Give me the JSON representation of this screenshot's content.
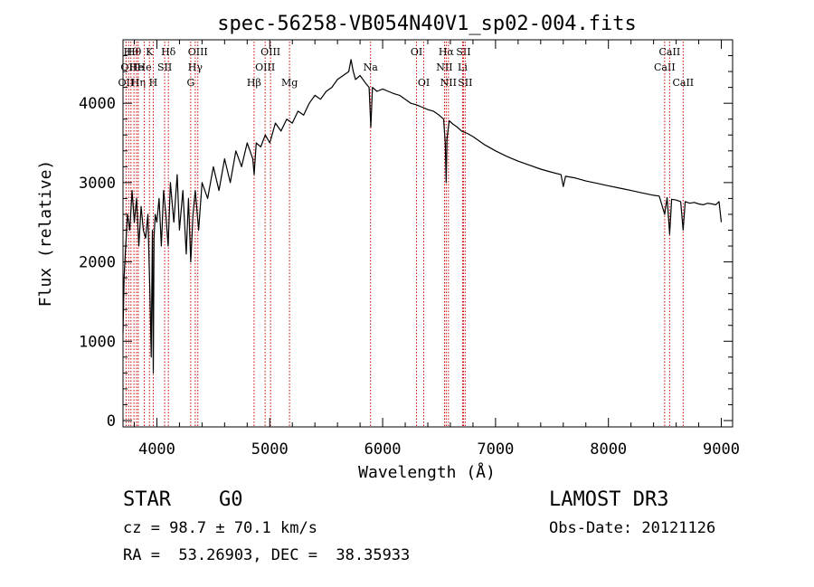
{
  "chart_data": {
    "type": "line",
    "title": "spec-56258-VB054N40V1_sp02-004.fits",
    "xlabel": "Wavelength (Å)",
    "ylabel": "Flux (relative)",
    "xlim": [
      3700,
      9100
    ],
    "ylim": [
      -80,
      4800
    ],
    "x_ticks": [
      4000,
      5000,
      6000,
      7000,
      8000,
      9000
    ],
    "x_tick_labels": [
      "4000",
      "5000",
      "6000",
      "7000",
      "8000",
      "9000"
    ],
    "y_ticks": [
      0,
      1000,
      2000,
      3000,
      4000
    ],
    "y_tick_labels": [
      "0",
      "1000",
      "2000",
      "3000",
      "4000"
    ],
    "grid": false,
    "series": [
      {
        "name": "flux",
        "color": "#000000",
        "x": [
          3700,
          3710,
          3720,
          3740,
          3760,
          3780,
          3800,
          3820,
          3840,
          3860,
          3880,
          3900,
          3920,
          3940,
          3950,
          3960,
          3968,
          3975,
          3985,
          4000,
          4020,
          4040,
          4060,
          4080,
          4100,
          4120,
          4150,
          4180,
          4200,
          4230,
          4260,
          4280,
          4300,
          4320,
          4340,
          4370,
          4400,
          4450,
          4500,
          4550,
          4600,
          4650,
          4700,
          4750,
          4800,
          4850,
          4862,
          4880,
          4920,
          4960,
          5000,
          5050,
          5100,
          5150,
          5200,
          5250,
          5300,
          5350,
          5400,
          5450,
          5500,
          5550,
          5600,
          5650,
          5700,
          5720,
          5740,
          5760,
          5800,
          5850,
          5880,
          5895,
          5910,
          5950,
          6000,
          6050,
          6100,
          6150,
          6200,
          6250,
          6300,
          6350,
          6400,
          6450,
          6500,
          6540,
          6555,
          6563,
          6570,
          6590,
          6620,
          6660,
          6700,
          6750,
          6800,
          6900,
          7000,
          7100,
          7200,
          7300,
          7400,
          7500,
          7580,
          7600,
          7620,
          7700,
          7800,
          7900,
          8000,
          8100,
          8200,
          8300,
          8400,
          8450,
          8498,
          8520,
          8542,
          8560,
          8600,
          8640,
          8662,
          8680,
          8720,
          8760,
          8800,
          8840,
          8880,
          8920,
          8950,
          8980,
          9000
        ],
        "values": [
          1100,
          1800,
          2100,
          2600,
          2400,
          2900,
          2500,
          2800,
          2200,
          2700,
          2400,
          2300,
          2600,
          1500,
          800,
          2400,
          600,
          2300,
          2600,
          2500,
          2800,
          2200,
          2900,
          2600,
          2200,
          3000,
          2500,
          3100,
          2400,
          2900,
          2100,
          2800,
          2000,
          2600,
          2900,
          2400,
          3000,
          2800,
          3200,
          2900,
          3300,
          3000,
          3400,
          3200,
          3500,
          3300,
          3100,
          3500,
          3450,
          3600,
          3500,
          3750,
          3650,
          3800,
          3750,
          3900,
          3850,
          4000,
          4100,
          4050,
          4150,
          4200,
          4300,
          4350,
          4400,
          4550,
          4400,
          4300,
          4350,
          4250,
          4200,
          3700,
          4200,
          4150,
          4180,
          4150,
          4120,
          4100,
          4050,
          4000,
          3980,
          3950,
          3920,
          3900,
          3850,
          3800,
          3500,
          3000,
          3550,
          3780,
          3740,
          3700,
          3650,
          3620,
          3580,
          3480,
          3400,
          3330,
          3270,
          3220,
          3170,
          3130,
          3100,
          2950,
          3080,
          3060,
          3020,
          2990,
          2960,
          2930,
          2900,
          2870,
          2840,
          2830,
          2600,
          2810,
          2350,
          2790,
          2780,
          2760,
          2400,
          2760,
          2740,
          2750,
          2730,
          2720,
          2740,
          2730,
          2720,
          2760,
          2500
        ]
      }
    ],
    "lines": [
      {
        "x": 3727,
        "labels": [
          "OII"
        ],
        "row": "r3"
      },
      {
        "x": 3750,
        "labels": [
          "OII"
        ],
        "row": "r2"
      },
      {
        "x": 3770,
        "labels": [
          "Hθ"
        ],
        "row": "r1"
      },
      {
        "x": 3797,
        "labels": [
          "Hθ"
        ],
        "row": "r1"
      },
      {
        "x": 3820,
        "labels": [
          "He"
        ],
        "row": "r2"
      },
      {
        "x": 3835,
        "labels": [
          "Hη"
        ],
        "row": "r3"
      },
      {
        "x": 3889,
        "labels": [
          "He"
        ],
        "row": "r2"
      },
      {
        "x": 3934,
        "labels": [
          "K"
        ],
        "row": "r1"
      },
      {
        "x": 3968,
        "labels": [
          "H"
        ],
        "row": "r3"
      },
      {
        "x": 4069,
        "labels": [
          "SII"
        ],
        "row": "r2"
      },
      {
        "x": 4102,
        "labels": [
          "Hδ"
        ],
        "row": "r1"
      },
      {
        "x": 4300,
        "labels": [
          "G"
        ],
        "row": "r3"
      },
      {
        "x": 4340,
        "labels": [
          "Hγ"
        ],
        "row": "r2"
      },
      {
        "x": 4363,
        "labels": [
          "OIII"
        ],
        "row": "r1"
      },
      {
        "x": 4861,
        "labels": [
          "Hβ"
        ],
        "row": "r3"
      },
      {
        "x": 4959,
        "labels": [
          "OIII"
        ],
        "row": "r2"
      },
      {
        "x": 5007,
        "labels": [
          "OIII"
        ],
        "row": "r1"
      },
      {
        "x": 5175,
        "labels": [
          "Mg"
        ],
        "row": "r3"
      },
      {
        "x": 5893,
        "labels": [
          "Na"
        ],
        "row": "r2"
      },
      {
        "x": 6300,
        "labels": [
          "OI"
        ],
        "row": "r1"
      },
      {
        "x": 6364,
        "labels": [
          "OI"
        ],
        "row": "r3"
      },
      {
        "x": 6548,
        "labels": [
          "NII"
        ],
        "row": "r2"
      },
      {
        "x": 6563,
        "labels": [
          "Hα"
        ],
        "row": "r1"
      },
      {
        "x": 6583,
        "labels": [
          "NII"
        ],
        "row": "r3"
      },
      {
        "x": 6708,
        "labels": [
          "Li"
        ],
        "row": "r2"
      },
      {
        "x": 6716,
        "labels": [
          "SII"
        ],
        "row": "r1"
      },
      {
        "x": 6731,
        "labels": [
          "SII"
        ],
        "row": "r3"
      },
      {
        "x": 8498,
        "labels": [
          "CaII"
        ],
        "row": "r2"
      },
      {
        "x": 8542,
        "labels": [
          "CaII"
        ],
        "row": "r1"
      },
      {
        "x": 8662,
        "labels": [
          "CaII"
        ],
        "row": "r3"
      }
    ],
    "line_color": "#cc0000"
  },
  "info": {
    "object_class": "STAR",
    "subclass": "G0",
    "survey": "LAMOST DR3",
    "cz": "cz = 98.7 ± 70.1 km/s",
    "obs_date": "Obs-Date: 20121126",
    "coords": "RA =  53.26903, DEC =  38.35933"
  }
}
